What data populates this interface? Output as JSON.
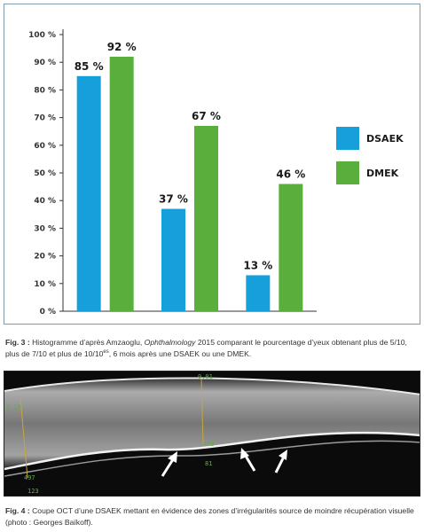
{
  "chart_data": {
    "type": "bar",
    "categories": [
      "",
      "",
      ""
    ],
    "series": [
      {
        "name": "DSAEK",
        "color": "#179fdc",
        "values": [
          85,
          37,
          13
        ],
        "labels": [
          "85 %",
          "37 %",
          "13 %"
        ]
      },
      {
        "name": "DMEK",
        "color": "#5aae3c",
        "values": [
          92,
          67,
          46
        ],
        "labels": [
          "92 %",
          "67 %",
          "46 %"
        ]
      }
    ],
    "ylim": [
      0,
      100
    ],
    "yticks": [
      "0 %",
      "10 %",
      "20 %",
      "30 %",
      "40 %",
      "50 %",
      "60 %",
      "70 %",
      "80 %",
      "90 %",
      "100 %"
    ],
    "grid": false,
    "legend": "right"
  },
  "fig3": {
    "label": "Fig. 3 :",
    "text_before": " Histogramme d’après Amzaoglu, ",
    "journal": "Ophthalmology",
    "text_mid": " 2015 comparant le pourcentage d’yeux obtenant plus de 5/10, plus de 7/10 et plus de 10/10",
    "sup": "es",
    "text_after": ", 6 mois après une DSAEK ou une DMEK."
  },
  "oct": {
    "values": [
      "0.01",
      "0.10",
      "458",
      "81",
      "497",
      "123"
    ]
  },
  "fig4": {
    "label": "Fig. 4 :",
    "text": " Coupe OCT d’une DSAEK mettant en évidence des zones d’irrégularités source de moindre récupération visuelle (photo : Georges Baïkoff)."
  }
}
